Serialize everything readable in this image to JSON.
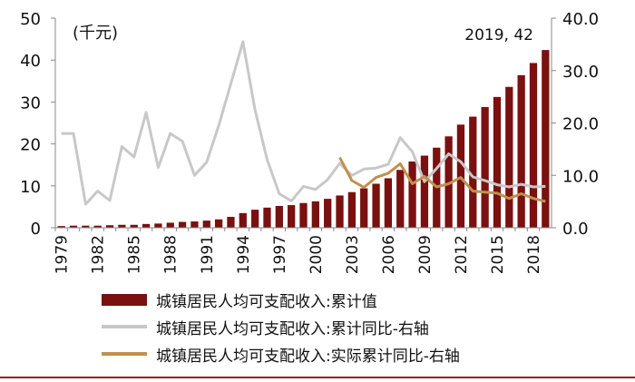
{
  "chart_data": {
    "type": "bar+line",
    "unit_label": "(千元)",
    "annotation": "2019, 42",
    "years": [
      1979,
      1980,
      1981,
      1982,
      1983,
      1984,
      1985,
      1986,
      1987,
      1988,
      1989,
      1990,
      1991,
      1992,
      1993,
      1994,
      1995,
      1996,
      1997,
      1998,
      1999,
      2000,
      2001,
      2002,
      2003,
      2004,
      2005,
      2006,
      2007,
      2008,
      2009,
      2010,
      2011,
      2012,
      2013,
      2014,
      2015,
      2016,
      2017,
      2018,
      2019
    ],
    "x_tick_labels": [
      "1979",
      "1982",
      "1985",
      "1988",
      "1991",
      "1994",
      "1997",
      "2000",
      "2003",
      "2006",
      "2009",
      "2012",
      "2015",
      "2018"
    ],
    "left_axis": {
      "ticks": [
        "0",
        "10",
        "20",
        "30",
        "40",
        "50"
      ],
      "min": 0,
      "max": 50
    },
    "right_axis": {
      "ticks": [
        "0.0",
        "10.0",
        "20.0",
        "30.0",
        "40.0"
      ],
      "min": 0,
      "max": 40
    },
    "series": [
      {
        "name": "城镇居民人均可支配收入:累计值",
        "type": "bar",
        "axis": "left",
        "color": "#7a1010",
        "values": [
          0.4,
          0.5,
          0.5,
          0.5,
          0.6,
          0.7,
          0.7,
          0.9,
          1.0,
          1.2,
          1.4,
          1.5,
          1.7,
          2.0,
          2.6,
          3.5,
          4.3,
          4.8,
          5.2,
          5.4,
          5.9,
          6.3,
          6.9,
          7.7,
          8.5,
          9.4,
          10.5,
          11.8,
          13.8,
          15.8,
          17.2,
          19.1,
          21.8,
          24.6,
          26.5,
          28.8,
          31.2,
          33.6,
          36.4,
          39.3,
          42.4
        ]
      },
      {
        "name": "城镇居民人均可支配收入:累计同比-右轴",
        "type": "line",
        "axis": "right",
        "color": "#c8c8c8",
        "values": [
          18,
          18,
          4.5,
          7,
          5.2,
          15.5,
          13.5,
          22,
          11.5,
          18,
          16.5,
          10,
          12.5,
          19.5,
          27.5,
          35.5,
          22.5,
          13,
          6.5,
          5.1,
          7.9,
          7.3,
          9.2,
          12.3,
          10,
          11.2,
          11.4,
          12.1,
          17.2,
          14.5,
          8.8,
          11.3,
          14.1,
          12.6,
          9.7,
          9,
          8.2,
          7.8,
          8.3,
          7.8,
          7.9
        ]
      },
      {
        "name": "城镇居民人均可支配收入:实际累计同比-右轴",
        "type": "line",
        "axis": "right",
        "color": "#c09050",
        "values": [
          null,
          null,
          null,
          null,
          null,
          null,
          null,
          null,
          null,
          null,
          null,
          null,
          null,
          null,
          null,
          null,
          null,
          null,
          null,
          null,
          null,
          null,
          null,
          13.4,
          9,
          7.7,
          9.6,
          10.4,
          12.2,
          8.4,
          9.8,
          7.8,
          8.4,
          9.6,
          7,
          6.8,
          6.6,
          5.6,
          6.5,
          5.6,
          5
        ]
      }
    ]
  }
}
